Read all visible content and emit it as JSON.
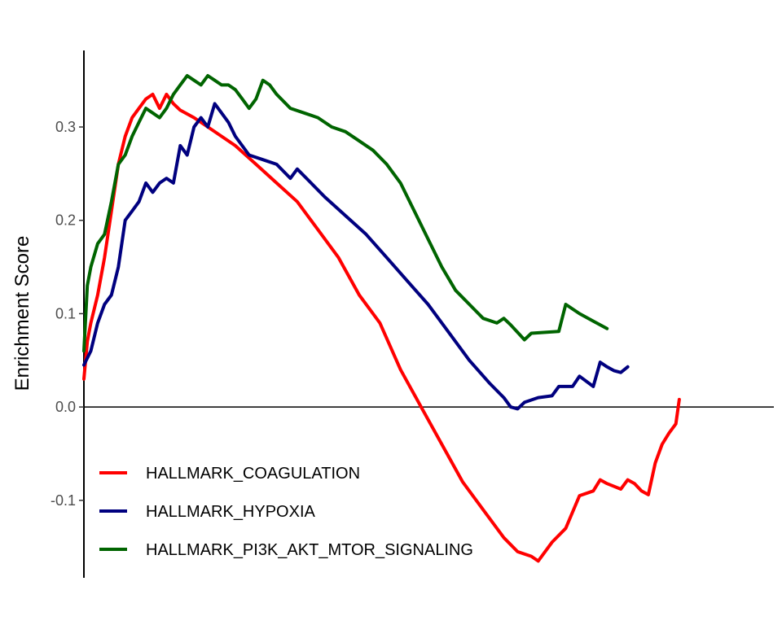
{
  "chart_data": {
    "type": "line",
    "title": "",
    "xlabel": "",
    "ylabel": "Enrichment Score",
    "ylim": [
      -0.183,
      0.382
    ],
    "xlim": [
      0,
      1
    ],
    "x_axis_shown": false,
    "grid": false,
    "zero_line": true,
    "legend_position": "bottom-left",
    "yticks": [
      -0.1,
      0.0,
      0.1,
      0.2,
      0.3
    ],
    "ytick_labels": [
      "-0.1",
      "0.0",
      "0.1",
      "0.2",
      "0.3"
    ],
    "series": [
      {
        "name": "HALLMARK_COAGULATION",
        "color": "#ff0000",
        "points": [
          [
            0.0,
            0.03
          ],
          [
            0.005,
            0.07
          ],
          [
            0.01,
            0.09
          ],
          [
            0.02,
            0.12
          ],
          [
            0.03,
            0.16
          ],
          [
            0.04,
            0.21
          ],
          [
            0.05,
            0.26
          ],
          [
            0.06,
            0.29
          ],
          [
            0.07,
            0.31
          ],
          [
            0.08,
            0.32
          ],
          [
            0.09,
            0.33
          ],
          [
            0.1,
            0.335
          ],
          [
            0.11,
            0.32
          ],
          [
            0.12,
            0.335
          ],
          [
            0.13,
            0.325
          ],
          [
            0.14,
            0.318
          ],
          [
            0.16,
            0.31
          ],
          [
            0.18,
            0.3
          ],
          [
            0.2,
            0.29
          ],
          [
            0.22,
            0.28
          ],
          [
            0.25,
            0.26
          ],
          [
            0.28,
            0.24
          ],
          [
            0.31,
            0.22
          ],
          [
            0.34,
            0.19
          ],
          [
            0.37,
            0.16
          ],
          [
            0.4,
            0.12
          ],
          [
            0.43,
            0.09
          ],
          [
            0.46,
            0.04
          ],
          [
            0.49,
            0.0
          ],
          [
            0.52,
            -0.04
          ],
          [
            0.55,
            -0.08
          ],
          [
            0.58,
            -0.11
          ],
          [
            0.61,
            -0.14
          ],
          [
            0.63,
            -0.155
          ],
          [
            0.65,
            -0.16
          ],
          [
            0.66,
            -0.165
          ],
          [
            0.68,
            -0.145
          ],
          [
            0.7,
            -0.13
          ],
          [
            0.72,
            -0.095
          ],
          [
            0.74,
            -0.09
          ],
          [
            0.75,
            -0.078
          ],
          [
            0.76,
            -0.082
          ],
          [
            0.78,
            -0.088
          ],
          [
            0.79,
            -0.078
          ],
          [
            0.8,
            -0.082
          ],
          [
            0.81,
            -0.09
          ],
          [
            0.82,
            -0.094
          ],
          [
            0.83,
            -0.06
          ],
          [
            0.84,
            -0.04
          ],
          [
            0.85,
            -0.028
          ],
          [
            0.86,
            -0.018
          ],
          [
            0.865,
            0.008
          ]
        ]
      },
      {
        "name": "HALLMARK_HYPOXIA",
        "color": "#00007f",
        "points": [
          [
            0.0,
            0.045
          ],
          [
            0.01,
            0.06
          ],
          [
            0.02,
            0.09
          ],
          [
            0.03,
            0.11
          ],
          [
            0.04,
            0.12
          ],
          [
            0.05,
            0.15
          ],
          [
            0.06,
            0.2
          ],
          [
            0.07,
            0.21
          ],
          [
            0.08,
            0.22
          ],
          [
            0.09,
            0.24
          ],
          [
            0.1,
            0.23
          ],
          [
            0.11,
            0.24
          ],
          [
            0.12,
            0.245
          ],
          [
            0.13,
            0.24
          ],
          [
            0.14,
            0.28
          ],
          [
            0.15,
            0.27
          ],
          [
            0.16,
            0.3
          ],
          [
            0.17,
            0.31
          ],
          [
            0.18,
            0.3
          ],
          [
            0.19,
            0.325
          ],
          [
            0.2,
            0.315
          ],
          [
            0.21,
            0.305
          ],
          [
            0.22,
            0.29
          ],
          [
            0.24,
            0.27
          ],
          [
            0.26,
            0.265
          ],
          [
            0.28,
            0.26
          ],
          [
            0.3,
            0.245
          ],
          [
            0.31,
            0.255
          ],
          [
            0.33,
            0.24
          ],
          [
            0.35,
            0.225
          ],
          [
            0.38,
            0.205
          ],
          [
            0.41,
            0.185
          ],
          [
            0.44,
            0.16
          ],
          [
            0.47,
            0.135
          ],
          [
            0.5,
            0.11
          ],
          [
            0.53,
            0.08
          ],
          [
            0.56,
            0.05
          ],
          [
            0.59,
            0.025
          ],
          [
            0.61,
            0.01
          ],
          [
            0.62,
            0.0
          ],
          [
            0.63,
            -0.002
          ],
          [
            0.64,
            0.005
          ],
          [
            0.66,
            0.01
          ],
          [
            0.68,
            0.012
          ],
          [
            0.69,
            0.022
          ],
          [
            0.71,
            0.022
          ],
          [
            0.72,
            0.033
          ],
          [
            0.74,
            0.022
          ],
          [
            0.75,
            0.048
          ],
          [
            0.76,
            0.043
          ],
          [
            0.77,
            0.039
          ],
          [
            0.78,
            0.037
          ],
          [
            0.79,
            0.043
          ]
        ]
      },
      {
        "name": "HALLMARK_PI3K_AKT_MTOR_SIGNALING",
        "color": "#006400",
        "points": [
          [
            0.0,
            0.06
          ],
          [
            0.005,
            0.13
          ],
          [
            0.01,
            0.15
          ],
          [
            0.02,
            0.175
          ],
          [
            0.03,
            0.185
          ],
          [
            0.04,
            0.22
          ],
          [
            0.05,
            0.26
          ],
          [
            0.06,
            0.27
          ],
          [
            0.07,
            0.29
          ],
          [
            0.08,
            0.305
          ],
          [
            0.09,
            0.32
          ],
          [
            0.1,
            0.315
          ],
          [
            0.11,
            0.31
          ],
          [
            0.12,
            0.32
          ],
          [
            0.13,
            0.335
          ],
          [
            0.14,
            0.345
          ],
          [
            0.15,
            0.355
          ],
          [
            0.16,
            0.35
          ],
          [
            0.17,
            0.345
          ],
          [
            0.18,
            0.355
          ],
          [
            0.19,
            0.35
          ],
          [
            0.2,
            0.345
          ],
          [
            0.21,
            0.345
          ],
          [
            0.22,
            0.34
          ],
          [
            0.23,
            0.33
          ],
          [
            0.24,
            0.32
          ],
          [
            0.25,
            0.33
          ],
          [
            0.26,
            0.35
          ],
          [
            0.27,
            0.345
          ],
          [
            0.28,
            0.335
          ],
          [
            0.3,
            0.32
          ],
          [
            0.32,
            0.315
          ],
          [
            0.34,
            0.31
          ],
          [
            0.36,
            0.3
          ],
          [
            0.38,
            0.295
          ],
          [
            0.4,
            0.285
          ],
          [
            0.42,
            0.275
          ],
          [
            0.44,
            0.26
          ],
          [
            0.46,
            0.24
          ],
          [
            0.48,
            0.21
          ],
          [
            0.5,
            0.18
          ],
          [
            0.52,
            0.15
          ],
          [
            0.54,
            0.125
          ],
          [
            0.56,
            0.11
          ],
          [
            0.58,
            0.095
          ],
          [
            0.6,
            0.09
          ],
          [
            0.61,
            0.095
          ],
          [
            0.62,
            0.088
          ],
          [
            0.63,
            0.08
          ],
          [
            0.64,
            0.072
          ],
          [
            0.65,
            0.079
          ],
          [
            0.67,
            0.08
          ],
          [
            0.69,
            0.081
          ],
          [
            0.7,
            0.11
          ],
          [
            0.72,
            0.1
          ],
          [
            0.74,
            0.092
          ],
          [
            0.76,
            0.084
          ]
        ]
      }
    ]
  }
}
